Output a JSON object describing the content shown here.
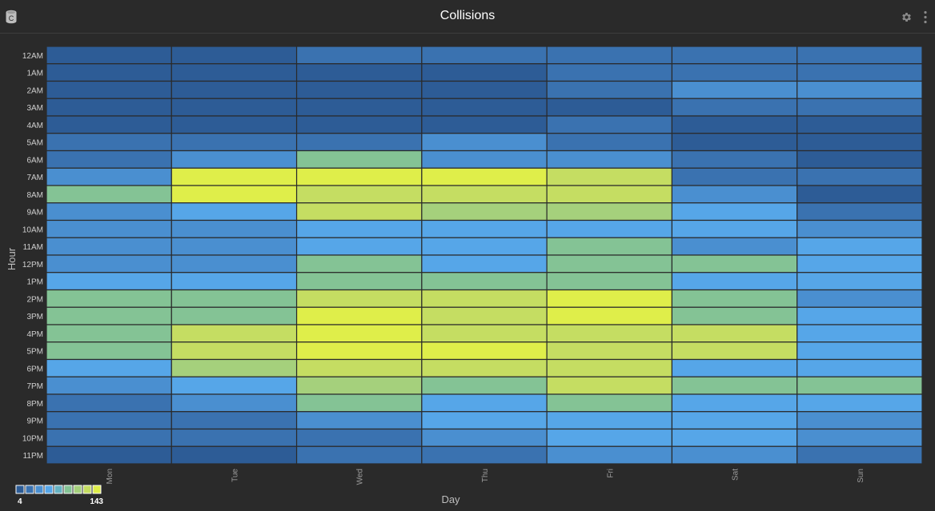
{
  "header": {
    "title": "Collisions",
    "app_icon_letter": "C",
    "app_icon": "database-icon",
    "settings_icon": "gear-icon",
    "menu_icon": "kebab-menu-icon"
  },
  "chart_data": {
    "type": "heatmap",
    "title": "",
    "xlabel": "Day",
    "ylabel": "Hour",
    "x": [
      "Mon",
      "Tue",
      "Wed",
      "Thu",
      "Fri",
      "Sat",
      "Sun"
    ],
    "y": [
      "12AM",
      "1AM",
      "2AM",
      "3AM",
      "4AM",
      "5AM",
      "6AM",
      "7AM",
      "8AM",
      "9AM",
      "10AM",
      "11AM",
      "12PM",
      "1PM",
      "2PM",
      "3PM",
      "4PM",
      "5PM",
      "6PM",
      "7PM",
      "8PM",
      "9PM",
      "10PM",
      "11PM"
    ],
    "values": [
      [
        10,
        8,
        25,
        25,
        25,
        25,
        25
      ],
      [
        10,
        10,
        10,
        10,
        25,
        25,
        25
      ],
      [
        10,
        10,
        10,
        10,
        25,
        40,
        40
      ],
      [
        10,
        10,
        10,
        10,
        10,
        25,
        25
      ],
      [
        10,
        10,
        10,
        10,
        25,
        10,
        10
      ],
      [
        25,
        25,
        25,
        40,
        25,
        10,
        10
      ],
      [
        25,
        40,
        85,
        40,
        40,
        25,
        10
      ],
      [
        40,
        130,
        140,
        140,
        115,
        25,
        25
      ],
      [
        85,
        130,
        115,
        115,
        115,
        40,
        10
      ],
      [
        40,
        60,
        120,
        100,
        100,
        60,
        25
      ],
      [
        40,
        40,
        60,
        60,
        60,
        60,
        40
      ],
      [
        40,
        40,
        60,
        60,
        85,
        40,
        60
      ],
      [
        40,
        40,
        85,
        60,
        85,
        85,
        60
      ],
      [
        60,
        60,
        85,
        85,
        85,
        60,
        60
      ],
      [
        85,
        85,
        115,
        115,
        135,
        85,
        40
      ],
      [
        85,
        85,
        130,
        125,
        143,
        85,
        60
      ],
      [
        85,
        115,
        130,
        125,
        125,
        115,
        60
      ],
      [
        85,
        115,
        140,
        130,
        125,
        115,
        60
      ],
      [
        60,
        100,
        115,
        120,
        115,
        60,
        60
      ],
      [
        40,
        60,
        100,
        85,
        115,
        85,
        85
      ],
      [
        25,
        40,
        85,
        60,
        85,
        60,
        60
      ],
      [
        25,
        25,
        40,
        60,
        60,
        60,
        40
      ],
      [
        25,
        25,
        25,
        40,
        60,
        60,
        40
      ],
      [
        10,
        10,
        25,
        25,
        40,
        40,
        25
      ]
    ],
    "zlim": [
      4,
      143
    ],
    "legend": {
      "placement": "bottom-left",
      "min_label": "4",
      "max_label": "143",
      "colors": [
        "#2d5c96",
        "#3a72b0",
        "#4a8fd0",
        "#56a6e8",
        "#66b2c2",
        "#84c395",
        "#a5d07c",
        "#c5dd62",
        "#dfee4a"
      ]
    },
    "grid": true
  }
}
